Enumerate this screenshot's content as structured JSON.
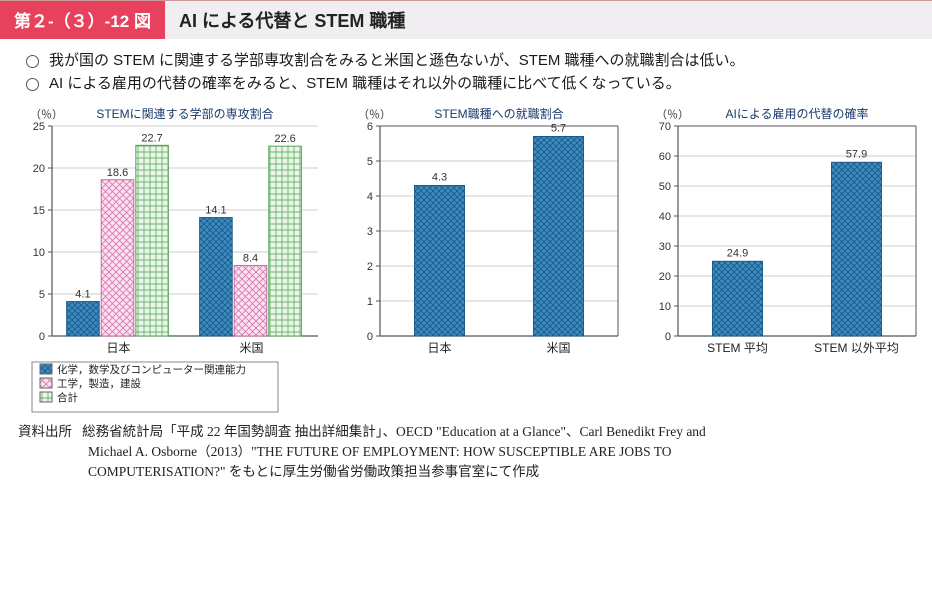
{
  "header": {
    "badge": "第２-（３）-12 図",
    "title": "AI による代替と STEM 職種"
  },
  "bullets": [
    "我が国の STEM に関連する学部専攻割合をみると米国と遜色ないが、STEM 職種への就職割合は低い。",
    "AI による雇用の代替の確率をみると、STEM 職種はそれ以外の職種に比べて低くなっている。"
  ],
  "chart1": {
    "type": "bar-grouped",
    "unit": "（％）",
    "title": "STEMに関連する学部の専攻割合",
    "ylim": [
      0,
      25
    ],
    "ytick_step": 5,
    "categories": [
      "日本",
      "米国"
    ],
    "series": [
      {
        "name": "化学，数学及びコンピューター関連能力",
        "values": [
          4.1,
          14.1
        ],
        "pattern": "blue-cross",
        "fill": "#2d7fb8",
        "stroke": "#1d5a85"
      },
      {
        "name": "工学，製造，建設",
        "values": [
          18.6,
          8.4
        ],
        "pattern": "pink-cross",
        "fill": "#e9a5c8",
        "stroke": "#c06aa0"
      },
      {
        "name": "合計",
        "values": [
          22.7,
          22.6
        ],
        "pattern": "green-grid",
        "fill": "#9dd29d",
        "stroke": "#5aa35a"
      }
    ],
    "value_labels": [
      [
        "4.1",
        "18.6",
        "22.7"
      ],
      [
        "14.1",
        "8.4",
        "22.6"
      ]
    ],
    "label_color": "#333",
    "axis_color": "#555",
    "grid_color": "#cccccc",
    "background": "#ffffff",
    "bar_width": 0.26,
    "title_fontsize": 12,
    "label_fontsize": 11
  },
  "chart2": {
    "type": "bar",
    "unit": "（％）",
    "title": "STEM職種への就職割合",
    "ylim": [
      0,
      6
    ],
    "ytick_step": 1,
    "categories": [
      "日本",
      "米国"
    ],
    "values": [
      4.3,
      5.7
    ],
    "value_labels": [
      "4.3",
      "5.7"
    ],
    "bar_fill": "#3c8cc4",
    "bar_stroke": "#1d5a85",
    "pattern": "blue-cross",
    "axis_color": "#555",
    "grid_color": "#cccccc",
    "background": "#ffffff",
    "bar_width": 0.42,
    "title_fontsize": 12,
    "label_fontsize": 11
  },
  "chart3": {
    "type": "bar",
    "unit": "（％）",
    "title": "AIによる雇用の代替の確率",
    "ylim": [
      0,
      70
    ],
    "ytick_step": 10,
    "categories": [
      "STEM 平均",
      "STEM 以外平均"
    ],
    "values": [
      24.9,
      57.9
    ],
    "value_labels": [
      "24.9",
      "57.9"
    ],
    "bar_fill": "#3c8cc4",
    "bar_stroke": "#1d5a85",
    "pattern": "blue-cross",
    "axis_color": "#555",
    "grid_color": "#cccccc",
    "background": "#ffffff",
    "bar_width": 0.42,
    "title_fontsize": 12,
    "label_fontsize": 11
  },
  "legend": {
    "items": [
      {
        "swatch": "blue-cross",
        "label": "化学，数学及びコンピューター関連能力"
      },
      {
        "swatch": "pink-cross",
        "label": "工学，製造，建設"
      },
      {
        "swatch": "green-grid",
        "label": "合計"
      }
    ],
    "border_color": "#888"
  },
  "source": {
    "label": "資料出所",
    "text1": "総務省統計局「平成 22 年国勢調査 抽出詳細集計」、OECD \"Education at a Glance\"、Carl Benedikt Frey and",
    "text2": "Michael  A.  Osborne（2013）\"THE  FUTURE  OF  EMPLOYMENT:  HOW  SUSCEPTIBLE  ARE  JOBS  TO",
    "text3": "COMPUTERISATION?\" をもとに厚生労働省労働政策担当参事官室にて作成"
  }
}
